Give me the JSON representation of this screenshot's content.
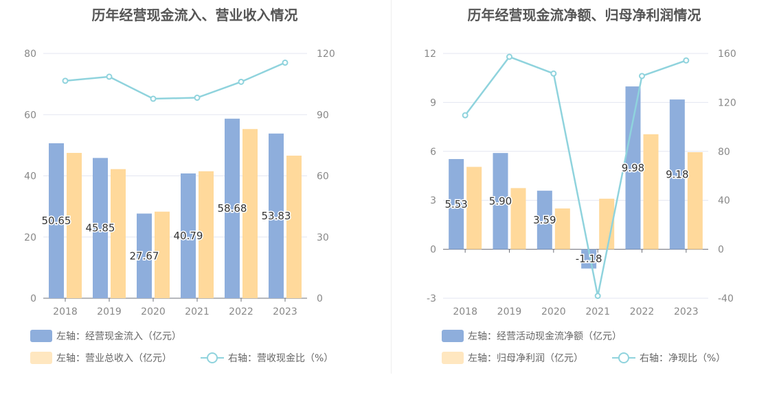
{
  "colors": {
    "blue": "#8eaedc",
    "orange": "#ffd99b",
    "line": "#8fd3dd",
    "axis_text": "#888888",
    "grid": "#e3e6f0",
    "label": "#333333"
  },
  "chart_data": [
    {
      "type": "bar+line",
      "title": "历年经营现金流入、营业收入情况",
      "categories": [
        "2018",
        "2019",
        "2020",
        "2021",
        "2022",
        "2023"
      ],
      "left_axis": {
        "min": 0,
        "max": 80,
        "ticks": [
          0,
          20,
          40,
          60,
          80
        ]
      },
      "right_axis": {
        "min": 0,
        "max": 120,
        "ticks": [
          0,
          30,
          60,
          90,
          120
        ]
      },
      "series": [
        {
          "name": "左轴：经营现金流入（亿元）",
          "type": "bar",
          "axis": "left",
          "color": "#8eaedc",
          "values": [
            50.65,
            45.85,
            27.67,
            40.79,
            58.68,
            53.83
          ],
          "labels": [
            "50.65",
            "45.85",
            "27.67",
            "40.79",
            "58.68",
            "53.83"
          ]
        },
        {
          "name": "左轴：营业总收入（亿元）",
          "type": "bar",
          "axis": "left",
          "color": "#ffd99b",
          "values": [
            47.5,
            42.2,
            28.3,
            41.5,
            55.3,
            46.6
          ]
        },
        {
          "name": "右轴：营收现金比（%）",
          "type": "line",
          "axis": "right",
          "color": "#8fd3dd",
          "values": [
            106.6,
            108.6,
            97.8,
            98.3,
            106.1,
            115.5
          ]
        }
      ]
    },
    {
      "type": "bar+line",
      "title": "历年经营现金流净额、归母净利润情况",
      "categories": [
        "2018",
        "2019",
        "2020",
        "2021",
        "2022",
        "2023"
      ],
      "left_axis": {
        "min": -3,
        "max": 12,
        "ticks": [
          -3,
          0,
          3,
          6,
          9,
          12
        ]
      },
      "right_axis": {
        "min": -40,
        "max": 160,
        "ticks": [
          -40,
          0,
          40,
          80,
          120,
          160
        ]
      },
      "series": [
        {
          "name": "左轴：经营活动现金流净额（亿元）",
          "type": "bar",
          "axis": "left",
          "color": "#8eaedc",
          "values": [
            5.53,
            5.9,
            3.59,
            -1.18,
            9.98,
            9.18
          ],
          "labels": [
            "5.53",
            "5.90",
            "3.59",
            "-1.18",
            "9.98",
            "9.18"
          ]
        },
        {
          "name": "左轴：归母净利润（亿元）",
          "type": "bar",
          "axis": "left",
          "color": "#ffd99b",
          "values": [
            5.05,
            3.75,
            2.5,
            3.1,
            7.05,
            5.95
          ]
        },
        {
          "name": "右轴：净现比（%）",
          "type": "line",
          "axis": "right",
          "color": "#8fd3dd",
          "values": [
            109.5,
            157.3,
            143.6,
            -38.1,
            141.6,
            154.3
          ]
        }
      ]
    }
  ]
}
